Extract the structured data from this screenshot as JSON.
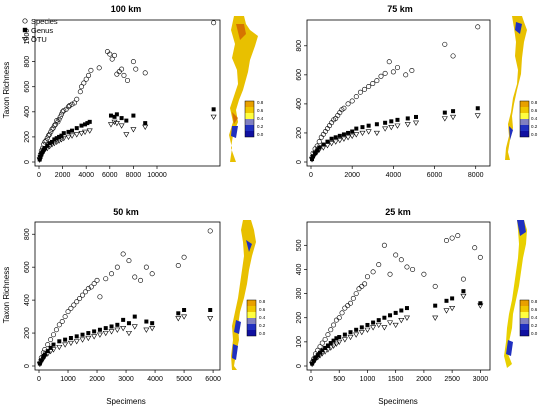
{
  "figure": {
    "shared_ylabel": "Taxon Richness",
    "shared_xlabel": "Specimens",
    "legend": [
      "Species",
      "Genus",
      "OTU"
    ],
    "colorbar_ticks": [
      "0.8",
      "0.6",
      "0.4",
      "0.2",
      "0.0"
    ],
    "colors": {
      "map_high": "#ffff00",
      "map_mid": "#e8a000",
      "map_low": "#2030c0",
      "map_lowest": "#1010a0",
      "point": "#000000"
    }
  },
  "chart_data": [
    {
      "type": "scatter",
      "title": "100 km",
      "xlabel": "",
      "ylabel": "Taxon Richness",
      "xlim": [
        0,
        15000
      ],
      "ylim": [
        0,
        1100
      ],
      "xticks": [
        0,
        2000,
        4000,
        6000,
        8000,
        10000
      ],
      "yticks": [
        0,
        200,
        400,
        600,
        800,
        1000
      ],
      "legend": "top-left",
      "series": [
        {
          "name": "Species",
          "marker": "circle",
          "x": [
            60,
            120,
            200,
            300,
            400,
            500,
            600,
            700,
            800,
            900,
            1000,
            1100,
            1200,
            1300,
            1400,
            1500,
            1600,
            1700,
            1800,
            1900,
            2000,
            2100,
            2300,
            2500,
            2600,
            2800,
            3000,
            3200,
            3500,
            3600,
            3800,
            4000,
            4200,
            4400,
            5100,
            5800,
            6000,
            6200,
            6400,
            6600,
            6800,
            7000,
            7200,
            7500,
            8000,
            8200,
            9000,
            14800
          ],
          "y": [
            30,
            60,
            90,
            110,
            140,
            160,
            170,
            190,
            210,
            220,
            240,
            260,
            270,
            290,
            300,
            330,
            320,
            340,
            360,
            380,
            400,
            410,
            420,
            440,
            450,
            460,
            470,
            500,
            560,
            600,
            630,
            660,
            690,
            730,
            750,
            880,
            860,
            820,
            850,
            700,
            720,
            740,
            690,
            650,
            800,
            740,
            710,
            1110
          ]
        },
        {
          "name": "Genus",
          "marker": "square",
          "x": [
            60,
            120,
            200,
            300,
            400,
            500,
            700,
            900,
            1100,
            1300,
            1500,
            1700,
            1900,
            2100,
            2500,
            2800,
            3200,
            3600,
            3900,
            4100,
            4300,
            6100,
            6400,
            6600,
            7000,
            7400,
            8000,
            9000,
            14800
          ],
          "y": [
            20,
            40,
            60,
            80,
            100,
            110,
            130,
            150,
            160,
            180,
            190,
            200,
            210,
            230,
            240,
            250,
            270,
            290,
            300,
            310,
            320,
            370,
            360,
            380,
            350,
            330,
            370,
            310,
            420
          ]
        },
        {
          "name": "OTU",
          "marker": "triangle-down",
          "x": [
            60,
            120,
            200,
            300,
            400,
            500,
            700,
            900,
            1100,
            1300,
            1500,
            1700,
            1900,
            2100,
            2500,
            2800,
            3200,
            3600,
            3900,
            4300,
            6100,
            6400,
            6600,
            7000,
            7400,
            8000,
            9000,
            14800
          ],
          "y": [
            18,
            35,
            55,
            70,
            85,
            100,
            110,
            125,
            140,
            150,
            160,
            170,
            180,
            190,
            200,
            210,
            220,
            230,
            240,
            250,
            300,
            320,
            310,
            290,
            220,
            260,
            280,
            360
          ]
        }
      ]
    },
    {
      "type": "scatter",
      "title": "75 km",
      "xlabel": "",
      "ylabel": "",
      "xlim": [
        0,
        8500
      ],
      "ylim": [
        0,
        950
      ],
      "xticks": [
        0,
        2000,
        4000,
        6000,
        8000
      ],
      "yticks": [
        0,
        200,
        400,
        600,
        800
      ],
      "series": [
        {
          "name": "Species",
          "marker": "circle",
          "x": [
            50,
            100,
            200,
            300,
            400,
            500,
            600,
            700,
            800,
            900,
            1000,
            1100,
            1200,
            1300,
            1400,
            1500,
            1600,
            1800,
            2000,
            2200,
            2400,
            2600,
            2800,
            3000,
            3200,
            3400,
            3600,
            3800,
            4000,
            4200,
            4600,
            4900,
            6500,
            6900,
            8100
          ],
          "y": [
            30,
            60,
            90,
            110,
            140,
            170,
            190,
            210,
            230,
            250,
            270,
            290,
            300,
            320,
            340,
            360,
            370,
            400,
            420,
            450,
            480,
            500,
            520,
            540,
            560,
            590,
            610,
            690,
            620,
            650,
            600,
            630,
            810,
            730,
            930
          ]
        },
        {
          "name": "Genus",
          "marker": "square",
          "x": [
            50,
            100,
            200,
            300,
            400,
            600,
            800,
            1000,
            1200,
            1400,
            1600,
            1800,
            2000,
            2200,
            2500,
            2800,
            3200,
            3600,
            3900,
            4200,
            4700,
            5100,
            6500,
            6900,
            8100
          ],
          "y": [
            20,
            40,
            60,
            80,
            100,
            120,
            140,
            160,
            170,
            180,
            190,
            200,
            210,
            230,
            240,
            250,
            260,
            270,
            280,
            290,
            300,
            310,
            340,
            350,
            370
          ]
        },
        {
          "name": "OTU",
          "marker": "triangle-down",
          "x": [
            50,
            100,
            200,
            300,
            400,
            600,
            800,
            1000,
            1200,
            1400,
            1600,
            1800,
            2000,
            2200,
            2500,
            2800,
            3200,
            3600,
            3900,
            4200,
            4700,
            5100,
            6500,
            6900,
            8100
          ],
          "y": [
            18,
            35,
            55,
            70,
            85,
            100,
            115,
            130,
            140,
            150,
            160,
            170,
            180,
            190,
            200,
            210,
            200,
            230,
            240,
            250,
            260,
            270,
            300,
            310,
            320
          ]
        }
      ]
    },
    {
      "type": "scatter",
      "title": "50 km",
      "xlabel": "Specimens",
      "ylabel": "Taxon Richness",
      "xlim": [
        0,
        6100
      ],
      "ylim": [
        0,
        850
      ],
      "xticks": [
        0,
        1000,
        2000,
        3000,
        4000,
        5000,
        6000
      ],
      "yticks": [
        0,
        200,
        400,
        600,
        800
      ],
      "series": [
        {
          "name": "Species",
          "marker": "circle",
          "x": [
            30,
            80,
            150,
            200,
            300,
            400,
            500,
            600,
            700,
            800,
            900,
            1000,
            1100,
            1200,
            1300,
            1400,
            1500,
            1600,
            1700,
            1800,
            1900,
            2000,
            2100,
            2300,
            2500,
            2700,
            2900,
            3100,
            3300,
            3500,
            3700,
            3900,
            4800,
            5000,
            5900
          ],
          "y": [
            20,
            50,
            80,
            100,
            130,
            160,
            190,
            220,
            250,
            270,
            300,
            330,
            350,
            370,
            390,
            410,
            430,
            450,
            470,
            480,
            500,
            520,
            420,
            530,
            560,
            600,
            680,
            640,
            540,
            520,
            600,
            560,
            610,
            660,
            820
          ]
        },
        {
          "name": "Genus",
          "marker": "square",
          "x": [
            30,
            80,
            150,
            200,
            300,
            400,
            500,
            700,
            900,
            1100,
            1300,
            1500,
            1700,
            1900,
            2100,
            2300,
            2500,
            2700,
            2900,
            3100,
            3300,
            3700,
            3900,
            4800,
            5000,
            5900
          ],
          "y": [
            15,
            35,
            55,
            70,
            90,
            110,
            130,
            150,
            160,
            170,
            180,
            190,
            200,
            210,
            220,
            230,
            240,
            250,
            280,
            260,
            300,
            270,
            260,
            320,
            340,
            340
          ]
        },
        {
          "name": "OTU",
          "marker": "triangle-down",
          "x": [
            30,
            80,
            150,
            200,
            300,
            400,
            500,
            700,
            900,
            1100,
            1300,
            1500,
            1700,
            1900,
            2100,
            2300,
            2500,
            2700,
            2900,
            3100,
            3300,
            3700,
            3900,
            4800,
            5000,
            5900
          ],
          "y": [
            12,
            30,
            45,
            60,
            75,
            90,
            100,
            115,
            130,
            140,
            150,
            160,
            170,
            180,
            190,
            200,
            210,
            220,
            230,
            200,
            240,
            220,
            230,
            290,
            300,
            290
          ]
        }
      ]
    },
    {
      "type": "scatter",
      "title": "25 km",
      "xlabel": "Specimens",
      "ylabel": "",
      "xlim": [
        0,
        3100
      ],
      "ylim": [
        0,
        580
      ],
      "xticks": [
        0,
        500,
        1000,
        1500,
        2000,
        2500,
        3000
      ],
      "yticks": [
        0,
        100,
        200,
        300,
        400,
        500
      ],
      "series": [
        {
          "name": "Species",
          "marker": "circle",
          "x": [
            20,
            50,
            80,
            120,
            160,
            200,
            250,
            300,
            350,
            400,
            450,
            500,
            550,
            600,
            650,
            700,
            750,
            800,
            850,
            900,
            950,
            1000,
            1100,
            1200,
            1300,
            1400,
            1500,
            1600,
            1700,
            1800,
            2000,
            2200,
            2400,
            2500,
            2600,
            2700,
            2900,
            3000
          ],
          "y": [
            15,
            30,
            50,
            65,
            80,
            95,
            110,
            130,
            150,
            170,
            190,
            200,
            220,
            240,
            250,
            260,
            280,
            300,
            320,
            330,
            340,
            370,
            390,
            420,
            500,
            380,
            460,
            440,
            410,
            400,
            380,
            330,
            520,
            530,
            540,
            360,
            490,
            450
          ]
        },
        {
          "name": "Genus",
          "marker": "square",
          "x": [
            20,
            50,
            80,
            120,
            160,
            200,
            250,
            300,
            350,
            400,
            450,
            500,
            600,
            700,
            800,
            900,
            1000,
            1100,
            1200,
            1300,
            1400,
            1500,
            1600,
            1700,
            2200,
            2400,
            2500,
            2700,
            3000
          ],
          "y": [
            10,
            22,
            35,
            45,
            55,
            65,
            75,
            85,
            95,
            105,
            115,
            120,
            130,
            140,
            150,
            160,
            170,
            180,
            190,
            200,
            210,
            220,
            230,
            240,
            250,
            270,
            280,
            310,
            260
          ]
        },
        {
          "name": "OTU",
          "marker": "triangle-down",
          "x": [
            20,
            50,
            80,
            120,
            160,
            200,
            250,
            300,
            350,
            400,
            450,
            500,
            600,
            700,
            800,
            900,
            1000,
            1100,
            1200,
            1300,
            1400,
            1500,
            1600,
            1700,
            2200,
            2400,
            2500,
            2700,
            3000
          ],
          "y": [
            8,
            18,
            28,
            36,
            44,
            52,
            60,
            68,
            76,
            84,
            92,
            100,
            110,
            120,
            130,
            140,
            150,
            160,
            170,
            160,
            180,
            170,
            190,
            200,
            200,
            230,
            240,
            290,
            250
          ]
        }
      ]
    }
  ]
}
